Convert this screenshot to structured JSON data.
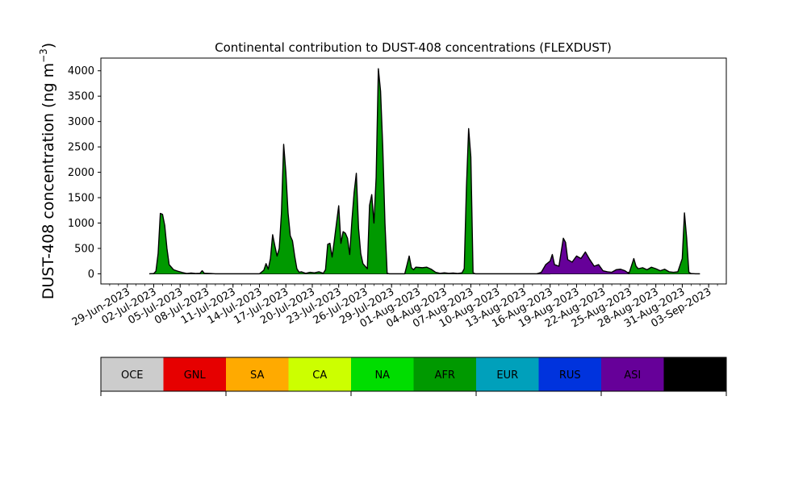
{
  "chart_data": {
    "type": "area",
    "title": "Continental contribution to DUST-408 concentrations (FLEXDUST)",
    "xlabel": "",
    "ylabel": "DUST-408 concentration (ng m",
    "ylabel_superscript": "−3",
    "ylabel_suffix": ")",
    "x_axis_type": "date",
    "xlim": [
      "2023-06-26",
      "2023-09-05"
    ],
    "ylim": [
      -200,
      4250
    ],
    "y_ticks": [
      0,
      500,
      1000,
      1500,
      2000,
      2500,
      3000,
      3500,
      4000
    ],
    "x_tick_labels": [
      "29-Jun-2023",
      "02-Jul-2023",
      "05-Jul-2023",
      "08-Jul-2023",
      "11-Jul-2023",
      "14-Jul-2023",
      "17-Jul-2023",
      "20-Jul-2023",
      "23-Jul-2023",
      "26-Jul-2023",
      "29-Jul-2023",
      "01-Aug-2023",
      "04-Aug-2023",
      "07-Aug-2023",
      "10-Aug-2023",
      "13-Aug-2023",
      "16-Aug-2023",
      "19-Aug-2023",
      "22-Aug-2023",
      "25-Aug-2023",
      "28-Aug-2023",
      "31-Aug-2023",
      "03-Sep-2023"
    ],
    "x_tick_dates": [
      "2023-06-29",
      "2023-07-02",
      "2023-07-05",
      "2023-07-08",
      "2023-07-11",
      "2023-07-14",
      "2023-07-17",
      "2023-07-20",
      "2023-07-23",
      "2023-07-26",
      "2023-07-29",
      "2023-08-01",
      "2023-08-04",
      "2023-08-07",
      "2023-08-10",
      "2023-08-13",
      "2023-08-16",
      "2023-08-19",
      "2023-08-22",
      "2023-08-25",
      "2023-08-28",
      "2023-08-31",
      "2023-09-03"
    ],
    "grid": false,
    "series": [
      {
        "name": "AFR",
        "color": "#009900",
        "points": [
          [
            "2023-07-01T12:00",
            0
          ],
          [
            "2023-07-02T00:00",
            5
          ],
          [
            "2023-07-02T06:00",
            50
          ],
          [
            "2023-07-02T12:00",
            400
          ],
          [
            "2023-07-02T18:00",
            1190
          ],
          [
            "2023-07-03T00:00",
            1170
          ],
          [
            "2023-07-03T06:00",
            950
          ],
          [
            "2023-07-03T12:00",
            500
          ],
          [
            "2023-07-03T18:00",
            180
          ],
          [
            "2023-07-04T06:00",
            80
          ],
          [
            "2023-07-04T18:00",
            50
          ],
          [
            "2023-07-05T06:00",
            25
          ],
          [
            "2023-07-05T18:00",
            5
          ],
          [
            "2023-07-06T06:00",
            15
          ],
          [
            "2023-07-06T18:00",
            5
          ],
          [
            "2023-07-07T06:00",
            10
          ],
          [
            "2023-07-07T12:00",
            60
          ],
          [
            "2023-07-07T18:00",
            10
          ],
          [
            "2023-07-08T12:00",
            5
          ],
          [
            "2023-07-09T00:00",
            0
          ],
          [
            "2023-07-14T00:00",
            0
          ],
          [
            "2023-07-14T12:00",
            70
          ],
          [
            "2023-07-14T18:00",
            200
          ],
          [
            "2023-07-15T00:00",
            90
          ],
          [
            "2023-07-15T06:00",
            300
          ],
          [
            "2023-07-15T12:00",
            770
          ],
          [
            "2023-07-15T18:00",
            550
          ],
          [
            "2023-07-16T00:00",
            350
          ],
          [
            "2023-07-16T06:00",
            500
          ],
          [
            "2023-07-16T12:00",
            1200
          ],
          [
            "2023-07-16T18:00",
            2550
          ],
          [
            "2023-07-17T00:00",
            2000
          ],
          [
            "2023-07-17T06:00",
            1200
          ],
          [
            "2023-07-17T12:00",
            750
          ],
          [
            "2023-07-17T18:00",
            650
          ],
          [
            "2023-07-18T00:00",
            350
          ],
          [
            "2023-07-18T06:00",
            100
          ],
          [
            "2023-07-18T12:00",
            30
          ],
          [
            "2023-07-18T18:00",
            40
          ],
          [
            "2023-07-19T06:00",
            10
          ],
          [
            "2023-07-19T18:00",
            30
          ],
          [
            "2023-07-20T06:00",
            20
          ],
          [
            "2023-07-20T18:00",
            40
          ],
          [
            "2023-07-21T06:00",
            10
          ],
          [
            "2023-07-21T12:00",
            80
          ],
          [
            "2023-07-21T18:00",
            580
          ],
          [
            "2023-07-22T00:00",
            600
          ],
          [
            "2023-07-22T06:00",
            330
          ],
          [
            "2023-07-22T12:00",
            650
          ],
          [
            "2023-07-22T18:00",
            1000
          ],
          [
            "2023-07-23T00:00",
            1340
          ],
          [
            "2023-07-23T06:00",
            600
          ],
          [
            "2023-07-23T12:00",
            830
          ],
          [
            "2023-07-23T18:00",
            800
          ],
          [
            "2023-07-24T00:00",
            700
          ],
          [
            "2023-07-24T06:00",
            380
          ],
          [
            "2023-07-24T12:00",
            1050
          ],
          [
            "2023-07-24T18:00",
            1600
          ],
          [
            "2023-07-25T00:00",
            1980
          ],
          [
            "2023-07-25T06:00",
            900
          ],
          [
            "2023-07-25T12:00",
            400
          ],
          [
            "2023-07-25T18:00",
            200
          ],
          [
            "2023-07-26T06:00",
            100
          ],
          [
            "2023-07-26T12:00",
            1350
          ],
          [
            "2023-07-26T18:00",
            1560
          ],
          [
            "2023-07-27T00:00",
            1000
          ],
          [
            "2023-07-27T06:00",
            1900
          ],
          [
            "2023-07-27T12:00",
            4040
          ],
          [
            "2023-07-27T18:00",
            3600
          ],
          [
            "2023-07-28T00:00",
            2500
          ],
          [
            "2023-07-28T06:00",
            1000
          ],
          [
            "2023-07-28T12:00",
            10
          ],
          [
            "2023-07-28T18:00",
            0
          ],
          [
            "2023-07-30T12:00",
            0
          ],
          [
            "2023-07-31T00:00",
            350
          ],
          [
            "2023-07-31T06:00",
            120
          ],
          [
            "2023-07-31T12:00",
            80
          ],
          [
            "2023-07-31T18:00",
            130
          ],
          [
            "2023-08-01T12:00",
            120
          ],
          [
            "2023-08-02T00:00",
            130
          ],
          [
            "2023-08-02T12:00",
            90
          ],
          [
            "2023-08-03T00:00",
            30
          ],
          [
            "2023-08-03T12:00",
            10
          ],
          [
            "2023-08-04T00:00",
            20
          ],
          [
            "2023-08-04T12:00",
            10
          ],
          [
            "2023-08-05T00:00",
            15
          ],
          [
            "2023-08-05T12:00",
            5
          ],
          [
            "2023-08-06T00:00",
            20
          ],
          [
            "2023-08-06T06:00",
            100
          ],
          [
            "2023-08-06T12:00",
            1700
          ],
          [
            "2023-08-06T18:00",
            2860
          ],
          [
            "2023-08-07T00:00",
            2300
          ],
          [
            "2023-08-07T06:00",
            20
          ],
          [
            "2023-08-07T12:00",
            0
          ],
          [
            "2023-08-16T00:00",
            0
          ],
          [
            "2023-08-16T12:00",
            40
          ],
          [
            "2023-08-17T00:00",
            20
          ],
          [
            "2023-08-17T12:00",
            45
          ],
          [
            "2023-08-18T00:00",
            20
          ],
          [
            "2023-08-18T12:00",
            40
          ],
          [
            "2023-08-19T00:00",
            20
          ],
          [
            "2023-08-19T12:00",
            35
          ],
          [
            "2023-08-20T00:00",
            25
          ],
          [
            "2023-08-20T12:00",
            40
          ],
          [
            "2023-08-21T00:00",
            30
          ],
          [
            "2023-08-21T12:00",
            20
          ],
          [
            "2023-08-22T00:00",
            25
          ],
          [
            "2023-08-22T12:00",
            20
          ],
          [
            "2023-08-23T00:00",
            30
          ],
          [
            "2023-08-23T12:00",
            60
          ],
          [
            "2023-08-24T00:00",
            40
          ],
          [
            "2023-08-24T12:00",
            15
          ],
          [
            "2023-08-25T00:00",
            30
          ],
          [
            "2023-08-25T12:00",
            300
          ],
          [
            "2023-08-25T18:00",
            150
          ],
          [
            "2023-08-26T00:00",
            100
          ],
          [
            "2023-08-26T12:00",
            120
          ],
          [
            "2023-08-27T00:00",
            80
          ],
          [
            "2023-08-27T12:00",
            130
          ],
          [
            "2023-08-28T00:00",
            100
          ],
          [
            "2023-08-28T12:00",
            60
          ],
          [
            "2023-08-29T00:00",
            90
          ],
          [
            "2023-08-29T12:00",
            40
          ],
          [
            "2023-08-30T00:00",
            30
          ],
          [
            "2023-08-30T12:00",
            40
          ],
          [
            "2023-08-31T00:00",
            300
          ],
          [
            "2023-08-31T06:00",
            1200
          ],
          [
            "2023-08-31T12:00",
            700
          ],
          [
            "2023-08-31T18:00",
            30
          ],
          [
            "2023-09-01T00:00",
            5
          ],
          [
            "2023-09-01T12:00",
            0
          ],
          [
            "2023-09-02T00:00",
            0
          ]
        ]
      },
      {
        "name": "ASI",
        "color": "#660099",
        "points": [
          [
            "2023-08-14T12:00",
            0
          ],
          [
            "2023-08-15T00:00",
            30
          ],
          [
            "2023-08-15T12:00",
            180
          ],
          [
            "2023-08-16T00:00",
            250
          ],
          [
            "2023-08-16T06:00",
            380
          ],
          [
            "2023-08-16T12:00",
            180
          ],
          [
            "2023-08-17T00:00",
            150
          ],
          [
            "2023-08-17T12:00",
            700
          ],
          [
            "2023-08-17T18:00",
            620
          ],
          [
            "2023-08-18T00:00",
            280
          ],
          [
            "2023-08-18T12:00",
            230
          ],
          [
            "2023-08-19T00:00",
            350
          ],
          [
            "2023-08-19T12:00",
            300
          ],
          [
            "2023-08-20T00:00",
            430
          ],
          [
            "2023-08-20T12:00",
            280
          ],
          [
            "2023-08-21T00:00",
            150
          ],
          [
            "2023-08-21T12:00",
            180
          ],
          [
            "2023-08-22T00:00",
            60
          ],
          [
            "2023-08-22T12:00",
            40
          ],
          [
            "2023-08-23T00:00",
            30
          ],
          [
            "2023-08-23T12:00",
            80
          ],
          [
            "2023-08-24T00:00",
            90
          ],
          [
            "2023-08-24T12:00",
            60
          ],
          [
            "2023-08-25T00:00",
            0
          ]
        ]
      }
    ],
    "legend": {
      "placement": "below",
      "entries": [
        {
          "name": "OCE",
          "color": "#cccccc"
        },
        {
          "name": "GNL",
          "color": "#e60000"
        },
        {
          "name": "SA",
          "color": "#ffaa00"
        },
        {
          "name": "CA",
          "color": "#ccff00"
        },
        {
          "name": "NA",
          "color": "#00dd00"
        },
        {
          "name": "AFR",
          "color": "#009900"
        },
        {
          "name": "EUR",
          "color": "#00a0bb"
        },
        {
          "name": "RUS",
          "color": "#0033dd"
        },
        {
          "name": "ASI",
          "color": "#660099"
        },
        {
          "name": "AUS",
          "color": "#000000"
        }
      ]
    }
  }
}
